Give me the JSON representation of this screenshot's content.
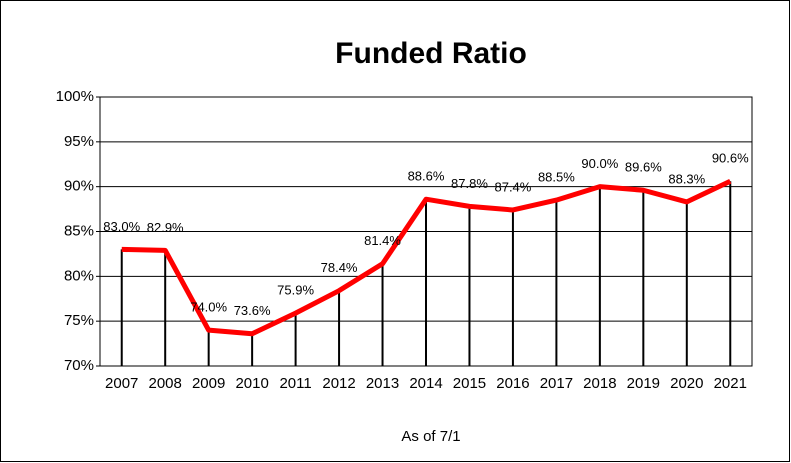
{
  "chart_data": {
    "type": "line",
    "title": "Funded Ratio",
    "x_label": "As of 7/1",
    "categories": [
      "2007",
      "2008",
      "2009",
      "2010",
      "2011",
      "2012",
      "2013",
      "2014",
      "2015",
      "2016",
      "2017",
      "2018",
      "2019",
      "2020",
      "2021"
    ],
    "values": [
      83.0,
      82.9,
      74.0,
      73.6,
      75.9,
      78.4,
      81.4,
      88.6,
      87.8,
      87.4,
      88.5,
      90.0,
      89.6,
      88.3,
      90.6
    ],
    "value_labels": [
      "83.0%",
      "82.9%",
      "74.0%",
      "73.6%",
      "75.9%",
      "78.4%",
      "81.4%",
      "88.6%",
      "87.8%",
      "87.4%",
      "88.5%",
      "90.0%",
      "89.6%",
      "88.3%",
      "90.6%"
    ],
    "color": "#ff0000",
    "ylim": [
      70,
      100
    ],
    "yticks": [
      {
        "value": 70,
        "label": "70%"
      },
      {
        "value": 75,
        "label": "75%"
      },
      {
        "value": 80,
        "label": "80%"
      },
      {
        "value": 85,
        "label": "85%"
      },
      {
        "value": 90,
        "label": "90%"
      },
      {
        "value": 95,
        "label": "95%"
      },
      {
        "value": 100,
        "label": "100%"
      }
    ],
    "grid": true,
    "drop_lines": true
  }
}
